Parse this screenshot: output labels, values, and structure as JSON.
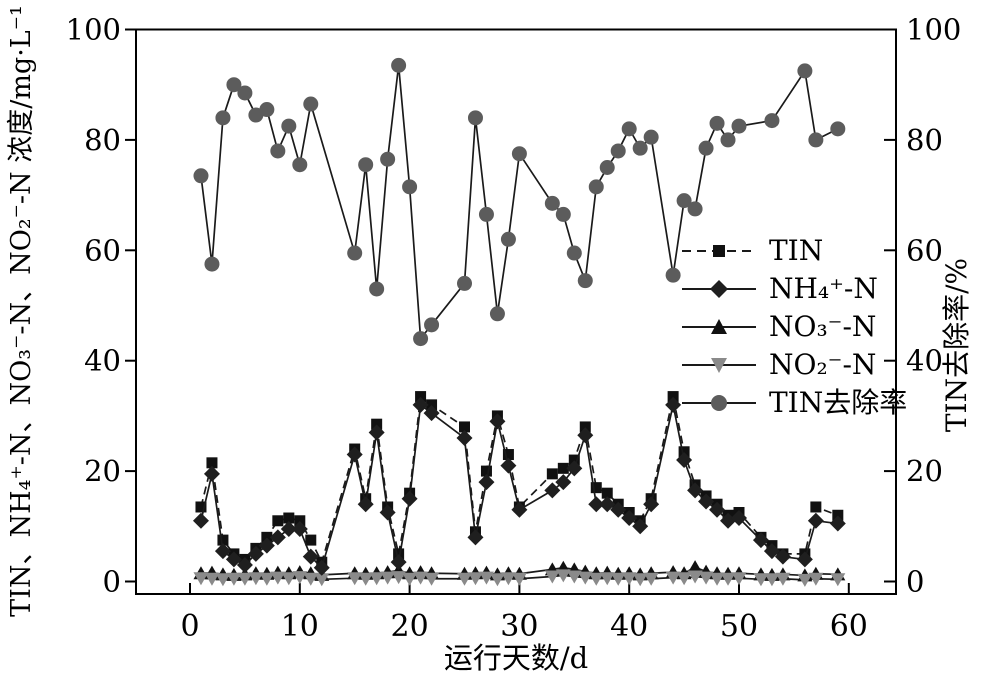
{
  "figure": {
    "x_label": "运行天数/d",
    "y_left_label": "TIN、NH₄⁺-N、NO₃⁻-N、NO₂⁻-N 浓度/mg·L⁻¹",
    "y_right_label": "TIN去除率/%"
  },
  "legend": {
    "position": "center-right",
    "items": [
      {
        "label": "TIN",
        "marker": "square",
        "color": "#111111",
        "line": "dashed"
      },
      {
        "label": "NH₄⁺-N",
        "marker": "diamond",
        "color": "#1f1f1f",
        "line": "solid"
      },
      {
        "label": "NO₃⁻-N",
        "marker": "triangle-up",
        "color": "#111111",
        "line": "solid"
      },
      {
        "label": "NO₂⁻-N",
        "marker": "triangle-down",
        "color": "#8a8a8a",
        "line": "solid"
      },
      {
        "label": "TIN去除率",
        "marker": "circle",
        "color": "#5c5c5c",
        "line": "solid"
      }
    ]
  },
  "chart_data": {
    "type": "line",
    "title": "",
    "xlabel": "运行天数/d",
    "ylabel_left": "TIN、NH₄⁺-N、NO₃⁻-N、NO₂⁻-N 浓度/mg·L⁻¹",
    "ylabel_right": "TIN去除率/%",
    "grid": false,
    "x_axis": {
      "ticks": [
        0,
        10,
        20,
        30,
        40,
        50,
        60
      ],
      "min": -5,
      "max": 64.2
    },
    "y_axis_left": {
      "ticks": [
        0,
        20,
        40,
        60,
        80,
        100
      ],
      "min": 0,
      "max": 100,
      "unit": "mg·L⁻¹"
    },
    "y_axis_right": {
      "ticks": [
        0,
        20,
        40,
        60,
        80,
        100
      ],
      "min": 0,
      "max": 100,
      "unit": "%"
    },
    "x": [
      1,
      2,
      3,
      4,
      5,
      6,
      7,
      8,
      9,
      10,
      11,
      12,
      15,
      16,
      17,
      18,
      19,
      20,
      21,
      22,
      25,
      26,
      27,
      28,
      29,
      30,
      33,
      34,
      35,
      36,
      37,
      38,
      39,
      40,
      41,
      42,
      44,
      45,
      46,
      47,
      48,
      49,
      50,
      52,
      53,
      54,
      56,
      57,
      59
    ],
    "series": [
      {
        "name": "TIN",
        "axis": "left",
        "marker": "square",
        "color": "#111111",
        "line_color": "#1a1a1a",
        "line_style": "dashed",
        "values": [
          13.5,
          21.5,
          7.5,
          5,
          4,
          6,
          8,
          11,
          11.5,
          11,
          7.5,
          3.5,
          24,
          15,
          28.5,
          13.5,
          5,
          16,
          33.5,
          32,
          28,
          9,
          20,
          30,
          23,
          13.5,
          19.5,
          20.5,
          22,
          28,
          17,
          16,
          14,
          12.5,
          11,
          15,
          33.5,
          23.5,
          17.5,
          15.5,
          14,
          12,
          12.5,
          8,
          6.5,
          5,
          5,
          13.5,
          12
        ]
      },
      {
        "name": "NH₄⁺-N",
        "axis": "left",
        "marker": "diamond",
        "color": "#1f1f1f",
        "line_color": "#1a1a1a",
        "line_style": "solid",
        "values": [
          11,
          19.5,
          5.5,
          4,
          3,
          5,
          6.5,
          8,
          9.5,
          9.5,
          4.5,
          2.5,
          23,
          14,
          27,
          12.5,
          3.5,
          15,
          32,
          30.5,
          26,
          8,
          18,
          29,
          21,
          13,
          16.5,
          18,
          20.5,
          26.5,
          14,
          14,
          13,
          11.5,
          10,
          14,
          32,
          22,
          16.5,
          14.5,
          13,
          11,
          11.5,
          7.5,
          5.5,
          4.5,
          4,
          11,
          10.5
        ]
      },
      {
        "name": "NO₃⁻-N",
        "axis": "left",
        "marker": "triangle-up",
        "color": "#111111",
        "line_color": "#1a1a1a",
        "line_style": "solid",
        "values": [
          1.5,
          1.6,
          1.3,
          1.2,
          1.3,
          1.5,
          1.4,
          1.6,
          1.5,
          1.7,
          1.5,
          1.2,
          1.5,
          1.4,
          1.5,
          1.7,
          2.0,
          1.5,
          1.7,
          1.5,
          1.4,
          1.5,
          1.6,
          1.3,
          1.5,
          1.4,
          2.2,
          2.5,
          2.2,
          1.8,
          1.5,
          1.6,
          1.4,
          1.5,
          1.3,
          1.5,
          1.7,
          1.5,
          2.6,
          1.8,
          1.5,
          1.4,
          1.5,
          1.3,
          1.2,
          1.3,
          1.1,
          1.4,
          1.3
        ]
      },
      {
        "name": "NO₂⁻-N",
        "axis": "left",
        "marker": "triangle-down",
        "color": "#8a8a8a",
        "line_color": "#1a1a1a",
        "line_style": "solid",
        "values": [
          0.6,
          0.5,
          0.4,
          0.5,
          0.5,
          0.6,
          0.5,
          0.7,
          0.6,
          0.8,
          0.5,
          0.4,
          0.6,
          0.5,
          0.6,
          0.7,
          0.8,
          0.5,
          0.7,
          0.5,
          0.5,
          0.6,
          0.7,
          0.4,
          0.6,
          0.5,
          0.9,
          1.1,
          0.9,
          0.7,
          0.5,
          0.6,
          0.5,
          0.6,
          0.4,
          0.5,
          0.7,
          0.6,
          0.9,
          0.7,
          0.5,
          0.5,
          0.6,
          0.4,
          0.4,
          0.5,
          0.3,
          0.5,
          0.4
        ]
      },
      {
        "name": "TIN去除率",
        "axis": "right",
        "marker": "circle",
        "color": "#5c5c5c",
        "line_color": "#1a1a1a",
        "line_style": "solid",
        "values": [
          73.5,
          57.5,
          84,
          90,
          88.5,
          84.5,
          85.5,
          78,
          82.5,
          75.5,
          86.5,
          null,
          59.5,
          75.5,
          53,
          76.5,
          93.5,
          71.5,
          44,
          46.5,
          54,
          84,
          66.5,
          48.5,
          62,
          77.5,
          68.5,
          66.5,
          59.5,
          54.5,
          71.5,
          75,
          78,
          82,
          78.5,
          80.5,
          55.5,
          69,
          67.5,
          78.5,
          83,
          80,
          82.5,
          null,
          83.5,
          null,
          92.5,
          80,
          82
        ]
      }
    ]
  }
}
